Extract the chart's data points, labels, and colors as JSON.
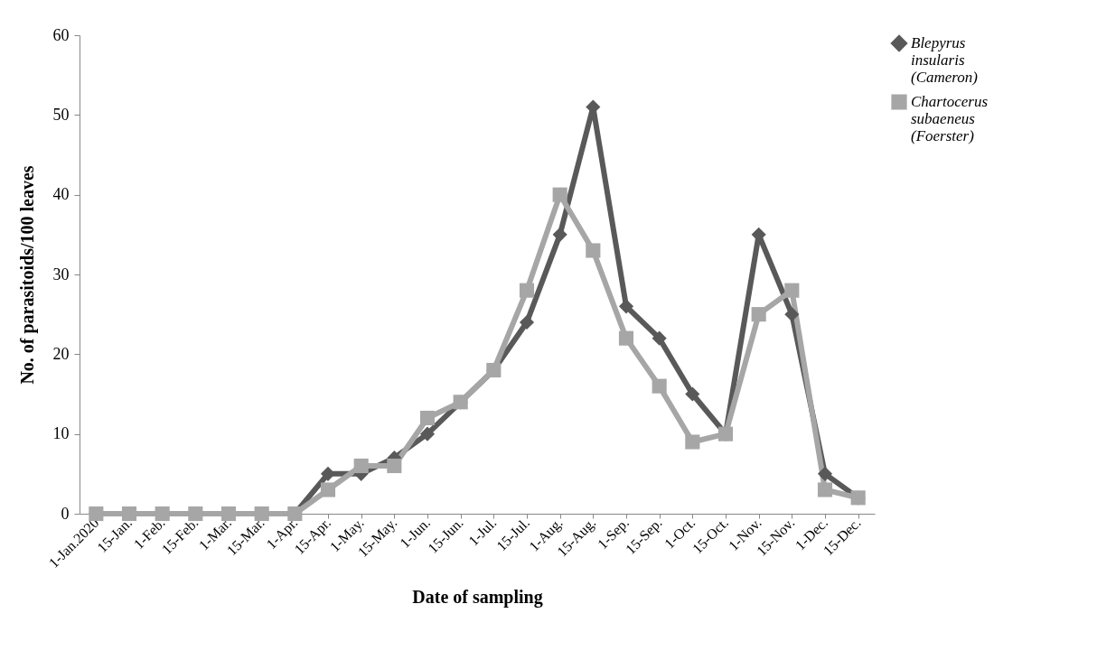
{
  "chart_data": {
    "type": "line",
    "xlabel": "Date of sampling",
    "ylabel": "No. of parasitoids/100 leaves",
    "categories": [
      "1-Jan.2020",
      "15-Jan.",
      "1-Feb.",
      "15-Feb.",
      "1-Mar.",
      "15-Mar.",
      "1-Apr.",
      "15-Apr.",
      "1-May.",
      "15-May.",
      "1-Jun.",
      "15-Jun.",
      "1-Jul.",
      "15-Jul.",
      "1-Aug.",
      "15-Aug.",
      "1-Sep.",
      "15-Sep.",
      "1-Oct.",
      "15-Oct.",
      "1-Nov.",
      "15-Nov.",
      "1-Dec.",
      "15-Dec."
    ],
    "series": [
      {
        "name": "Blepyrus insularis (Cameron)",
        "color": "#595959",
        "marker": "diamond",
        "values": [
          0,
          0,
          0,
          0,
          0,
          0,
          0,
          5,
          5,
          7,
          10,
          14,
          18,
          24,
          35,
          51,
          26,
          22,
          15,
          10,
          35,
          25,
          5,
          2
        ]
      },
      {
        "name": "Chartocerus subaeneus (Foerster)",
        "color": "#a6a6a6",
        "marker": "square",
        "values": [
          0,
          0,
          0,
          0,
          0,
          0,
          0,
          3,
          6,
          6,
          12,
          14,
          18,
          28,
          40,
          33,
          22,
          16,
          9,
          10,
          25,
          28,
          3,
          2
        ]
      }
    ],
    "ylim": [
      0,
      60
    ],
    "yticks": [
      0,
      10,
      20,
      30,
      40,
      50,
      60
    ],
    "grid": false,
    "legend": "right",
    "line_style": "solid"
  }
}
